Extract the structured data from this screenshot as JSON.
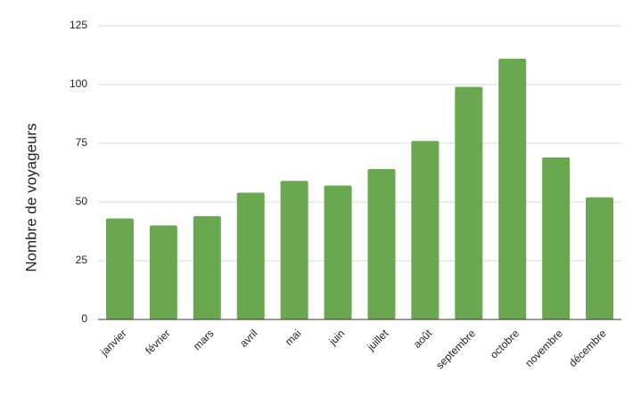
{
  "chart_data": {
    "type": "bar",
    "y_label": "Nombre de voyageurs",
    "categories": [
      "janvier",
      "février",
      "mars",
      "avril",
      "mai",
      "juin",
      "juillet",
      "août",
      "septembre",
      "octobre",
      "novembre",
      "décembre"
    ],
    "values": [
      43,
      40,
      44,
      54,
      59,
      57,
      64,
      76,
      99,
      111,
      69,
      52
    ],
    "color": "#6aa84f",
    "ylim": [
      0,
      125
    ],
    "yticks": [
      0,
      25,
      50,
      75,
      100,
      125
    ],
    "grid": true
  }
}
